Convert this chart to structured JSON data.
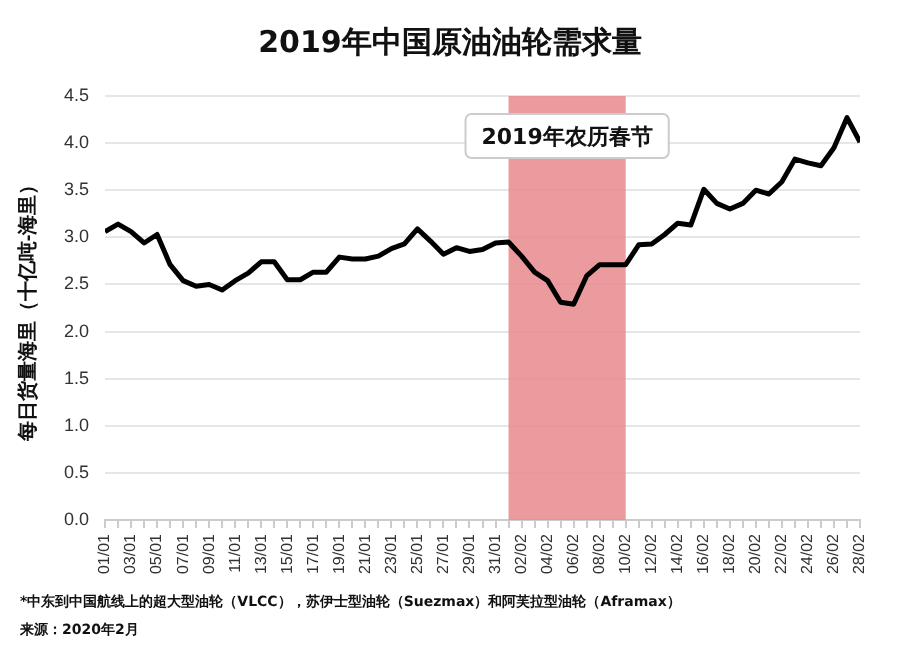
{
  "chart_data": {
    "type": "line",
    "title": "2019年中国原油油轮需求量",
    "ylabel": "每日货量海里（十亿吨-海里）",
    "x": [
      "--01-01",
      "--01-02",
      "--01-03",
      "--01-04",
      "--01-05",
      "--01-06",
      "--01-07",
      "--01-08",
      "--01-09",
      "--01-10",
      "--01-11",
      "--01-12",
      "--01-13",
      "--01-14",
      "--01-15",
      "--01-16",
      "--01-17",
      "--01-18",
      "--01-19",
      "--01-20",
      "--01-21",
      "--01-22",
      "--01-23",
      "--01-24",
      "--01-25",
      "--01-26",
      "--01-27",
      "--01-28",
      "--01-29",
      "--01-30",
      "--01-31",
      "--02-01",
      "--02-02",
      "--02-03",
      "--02-04",
      "--02-05",
      "--02-06",
      "--02-07",
      "--02-08",
      "--02-09",
      "--02-10",
      "--02-11",
      "--02-12",
      "--02-13",
      "--02-14",
      "--02-15",
      "--02-16",
      "--02-17",
      "--02-18",
      "--02-19",
      "--02-20",
      "--02-21",
      "--02-22",
      "--02-23",
      "--02-24",
      "--02-25",
      "--02-26",
      "--02-27",
      "--02-28"
    ],
    "series": [
      {
        "color": "#000000",
        "values": [
          3.06,
          3.14,
          3.06,
          2.94,
          3.03,
          2.71,
          2.54,
          2.48,
          2.5,
          2.44,
          2.54,
          2.62,
          2.74,
          2.74,
          2.55,
          2.55,
          2.63,
          2.63,
          2.79,
          2.77,
          2.77,
          2.8,
          2.88,
          2.93,
          3.09,
          2.96,
          2.82,
          2.89,
          2.85,
          2.87,
          2.94,
          2.95,
          2.8,
          2.63,
          2.54,
          2.31,
          2.29,
          2.59,
          2.71,
          2.71,
          2.71,
          2.92,
          2.93,
          3.03,
          3.15,
          3.13,
          3.51,
          3.36,
          3.3,
          3.36,
          3.5,
          3.46,
          3.59,
          3.83,
          3.79,
          3.76,
          3.95,
          4.27,
          4.01
        ]
      }
    ],
    "xlim": [
      "--01-01",
      "--02-28"
    ],
    "xticks": [
      {
        "value": "--01-01",
        "label": "01/01"
      },
      {
        "value": "--01-02",
        "label": null
      },
      {
        "value": "--01-03",
        "label": "03/01"
      },
      {
        "value": "--01-04",
        "label": null
      },
      {
        "value": "--01-05",
        "label": "05/01"
      },
      {
        "value": "--01-06",
        "label": null
      },
      {
        "value": "--01-07",
        "label": "07/01"
      },
      {
        "value": "--01-08",
        "label": null
      },
      {
        "value": "--01-09",
        "label": "09/01"
      },
      {
        "value": "--01-10",
        "label": null
      },
      {
        "value": "--01-11",
        "label": "11/01"
      },
      {
        "value": "--01-12",
        "label": null
      },
      {
        "value": "--01-13",
        "label": "13/01"
      },
      {
        "value": "--01-14",
        "label": null
      },
      {
        "value": "--01-15",
        "label": "15/01"
      },
      {
        "value": "--01-16",
        "label": null
      },
      {
        "value": "--01-17",
        "label": "17/01"
      },
      {
        "value": "--01-18",
        "label": null
      },
      {
        "value": "--01-19",
        "label": "19/01"
      },
      {
        "value": "--01-20",
        "label": null
      },
      {
        "value": "--01-21",
        "label": "21/01"
      },
      {
        "value": "--01-22",
        "label": null
      },
      {
        "value": "--01-23",
        "label": "23/01"
      },
      {
        "value": "--01-24",
        "label": null
      },
      {
        "value": "--01-25",
        "label": "25/01"
      },
      {
        "value": "--01-26",
        "label": null
      },
      {
        "value": "--01-27",
        "label": "27/01"
      },
      {
        "value": "--01-28",
        "label": null
      },
      {
        "value": "--01-29",
        "label": "29/01"
      },
      {
        "value": "--01-30",
        "label": null
      },
      {
        "value": "--01-31",
        "label": "31/01"
      },
      {
        "value": "--02-01",
        "label": null
      },
      {
        "value": "--02-02",
        "label": "02/02"
      },
      {
        "value": "--02-03",
        "label": null
      },
      {
        "value": "--02-04",
        "label": "04/02"
      },
      {
        "value": "--02-05",
        "label": null
      },
      {
        "value": "--02-06",
        "label": "06/02"
      },
      {
        "value": "--02-07",
        "label": null
      },
      {
        "value": "--02-08",
        "label": "08/02"
      },
      {
        "value": "--02-09",
        "label": null
      },
      {
        "value": "--02-10",
        "label": "10/02"
      },
      {
        "value": "--02-11",
        "label": null
      },
      {
        "value": "--02-12",
        "label": "12/02"
      },
      {
        "value": "--02-13",
        "label": null
      },
      {
        "value": "--02-14",
        "label": "14/02"
      },
      {
        "value": "--02-15",
        "label": null
      },
      {
        "value": "--02-16",
        "label": "16/02"
      },
      {
        "value": "--02-17",
        "label": null
      },
      {
        "value": "--02-18",
        "label": "18/02"
      },
      {
        "value": "--02-19",
        "label": null
      },
      {
        "value": "--02-20",
        "label": "20/02"
      },
      {
        "value": "--02-21",
        "label": null
      },
      {
        "value": "--02-22",
        "label": "22/02"
      },
      {
        "value": "--02-23",
        "label": null
      },
      {
        "value": "--02-24",
        "label": "24/02"
      },
      {
        "value": "--02-25",
        "label": null
      },
      {
        "value": "--02-26",
        "label": "26/02"
      },
      {
        "value": "--02-27",
        "label": null
      },
      {
        "value": "--02-28",
        "label": "28/02"
      }
    ],
    "ylim": [
      0,
      4.5
    ],
    "yticks": [
      {
        "value": 0,
        "label": "0.0"
      },
      {
        "value": 0.5,
        "label": "0.5"
      },
      {
        "value": 1,
        "label": "1.0"
      },
      {
        "value": 1.5,
        "label": "1.5"
      },
      {
        "value": 2,
        "label": "2.0"
      },
      {
        "value": 2.5,
        "label": "2.5"
      },
      {
        "value": 3,
        "label": "3.0"
      },
      {
        "value": 3.5,
        "label": "3.5"
      },
      {
        "value": 4,
        "label": "4.0"
      },
      {
        "value": 4.5,
        "label": "4.5"
      }
    ],
    "bands": [
      {
        "axis": "x",
        "from": "--02-01",
        "to": "--02-10",
        "label": "2019年农历春节",
        "color": "#e8898c"
      }
    ],
    "grid": "y",
    "marker": "none",
    "line_style": "solid",
    "annotations": [
      "*中东到中国航线上的超大型油轮（VLCC），苏伊士型油轮（Suezmax）和阿芙拉型油轮（Aframax）",
      "来源：2020年2月"
    ]
  }
}
